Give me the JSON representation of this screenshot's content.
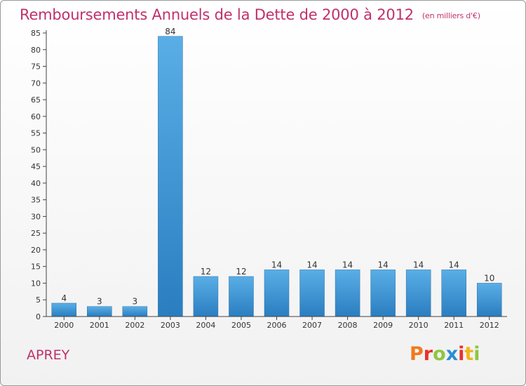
{
  "title": "Remboursements Annuels de la Dette de 2000 à 2012",
  "unit_note": "(en milliers d'€)",
  "commune": "APREY",
  "brand": {
    "letters": [
      "P",
      "r",
      "o",
      "x",
      "i",
      "t",
      "i"
    ],
    "colors": [
      "#f07a1e",
      "#e8322b",
      "#8ec63f",
      "#2a8dd4",
      "#e8322b",
      "#f0b51e",
      "#8ec63f"
    ]
  },
  "colors": {
    "title": "#c0306c",
    "bar_light": "#5aaee6",
    "bar_dark": "#2a7ec0",
    "axis": "#444444"
  },
  "chart_data": {
    "type": "bar",
    "categories": [
      "2000",
      "2001",
      "2002",
      "2003",
      "2004",
      "2005",
      "2006",
      "2007",
      "2008",
      "2009",
      "2010",
      "2011",
      "2012"
    ],
    "values": [
      4,
      3,
      3,
      84,
      12,
      12,
      14,
      14,
      14,
      14,
      14,
      14,
      10
    ],
    "yticks": [
      0,
      5,
      10,
      15,
      20,
      25,
      30,
      35,
      40,
      45,
      50,
      55,
      60,
      65,
      70,
      75,
      80,
      85
    ],
    "ylim": [
      0,
      85
    ],
    "grid": false,
    "xlabel": "",
    "ylabel": ""
  }
}
